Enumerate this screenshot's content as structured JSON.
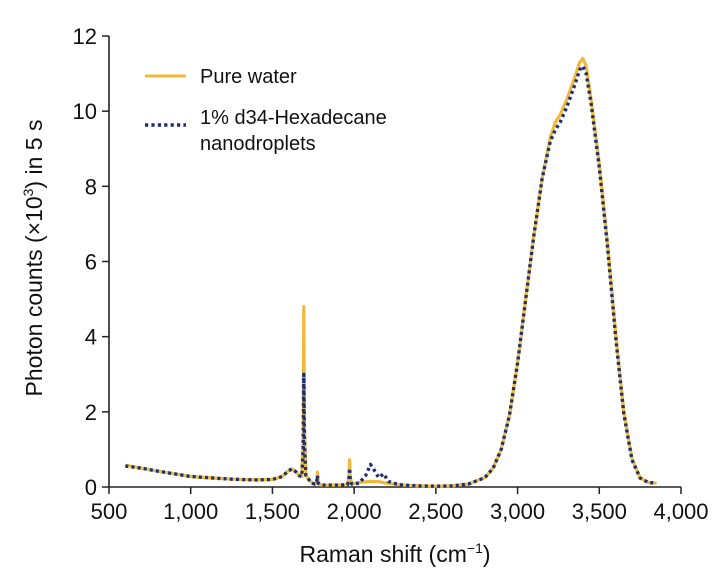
{
  "chart_data": {
    "type": "line",
    "xlabel": "Raman shift (cm",
    "xlabel_sup": "−1",
    "xlabel_tail": ")",
    "ylabel": "Photon counts (×10",
    "ylabel_sup": "3",
    "ylabel_tail": ") in 5 s",
    "xlim": [
      500,
      4000
    ],
    "ylim": [
      0,
      12
    ],
    "x_ticks": [
      500,
      1000,
      1500,
      2000,
      2500,
      3000,
      3500,
      4000
    ],
    "x_tick_labels": [
      "500",
      "1,000",
      "1,500",
      "2,000",
      "2,500",
      "3,000",
      "3,500",
      "4,000"
    ],
    "y_ticks": [
      0,
      2,
      4,
      6,
      8,
      10,
      12
    ],
    "y_tick_labels": [
      "0",
      "2",
      "4",
      "6",
      "8",
      "10",
      "12"
    ],
    "grid": false,
    "legend_position": "top-left",
    "series": [
      {
        "name": "Pure water",
        "color": "#f0b93b",
        "style": "solid",
        "points": [
          [
            600,
            0.58
          ],
          [
            700,
            0.5
          ],
          [
            800,
            0.42
          ],
          [
            900,
            0.35
          ],
          [
            1000,
            0.28
          ],
          [
            1100,
            0.25
          ],
          [
            1200,
            0.22
          ],
          [
            1300,
            0.2
          ],
          [
            1400,
            0.19
          ],
          [
            1500,
            0.2
          ],
          [
            1560,
            0.28
          ],
          [
            1600,
            0.44
          ],
          [
            1620,
            0.48
          ],
          [
            1645,
            0.4
          ],
          [
            1665,
            0.3
          ],
          [
            1680,
            0.28
          ],
          [
            1688,
            1.4
          ],
          [
            1692,
            4.8
          ],
          [
            1696,
            1.6
          ],
          [
            1705,
            0.3
          ],
          [
            1740,
            0.1
          ],
          [
            1760,
            0.08
          ],
          [
            1770,
            0.1
          ],
          [
            1775,
            0.4
          ],
          [
            1780,
            0.1
          ],
          [
            1800,
            0.05
          ],
          [
            1900,
            0.05
          ],
          [
            1960,
            0.06
          ],
          [
            1968,
            0.3
          ],
          [
            1972,
            0.72
          ],
          [
            1976,
            0.3
          ],
          [
            1985,
            0.08
          ],
          [
            2050,
            0.13
          ],
          [
            2100,
            0.15
          ],
          [
            2150,
            0.14
          ],
          [
            2200,
            0.1
          ],
          [
            2300,
            0.05
          ],
          [
            2400,
            0.03
          ],
          [
            2500,
            0.02
          ],
          [
            2600,
            0.03
          ],
          [
            2700,
            0.08
          ],
          [
            2800,
            0.25
          ],
          [
            2850,
            0.5
          ],
          [
            2900,
            1.0
          ],
          [
            2950,
            1.9
          ],
          [
            3000,
            3.3
          ],
          [
            3050,
            5.0
          ],
          [
            3100,
            6.7
          ],
          [
            3150,
            8.2
          ],
          [
            3200,
            9.3
          ],
          [
            3230,
            9.7
          ],
          [
            3260,
            9.9
          ],
          [
            3300,
            10.3
          ],
          [
            3350,
            10.9
          ],
          [
            3380,
            11.3
          ],
          [
            3400,
            11.4
          ],
          [
            3420,
            11.2
          ],
          [
            3450,
            10.3
          ],
          [
            3500,
            8.6
          ],
          [
            3550,
            6.5
          ],
          [
            3600,
            4.1
          ],
          [
            3650,
            2.0
          ],
          [
            3700,
            0.75
          ],
          [
            3750,
            0.25
          ],
          [
            3800,
            0.12
          ],
          [
            3850,
            0.1
          ]
        ]
      },
      {
        "name": "1% d34-Hexadecane nanodroplets",
        "color": "#1f2f6e",
        "style": "dotted",
        "points": [
          [
            600,
            0.56
          ],
          [
            700,
            0.5
          ],
          [
            800,
            0.42
          ],
          [
            900,
            0.35
          ],
          [
            1000,
            0.28
          ],
          [
            1100,
            0.25
          ],
          [
            1200,
            0.22
          ],
          [
            1300,
            0.2
          ],
          [
            1400,
            0.19
          ],
          [
            1500,
            0.2
          ],
          [
            1560,
            0.28
          ],
          [
            1600,
            0.44
          ],
          [
            1620,
            0.48
          ],
          [
            1645,
            0.4
          ],
          [
            1665,
            0.3
          ],
          [
            1680,
            0.28
          ],
          [
            1688,
            1.0
          ],
          [
            1692,
            3.0
          ],
          [
            1696,
            1.1
          ],
          [
            1705,
            0.3
          ],
          [
            1740,
            0.1
          ],
          [
            1760,
            0.08
          ],
          [
            1770,
            0.1
          ],
          [
            1775,
            0.3
          ],
          [
            1780,
            0.1
          ],
          [
            1800,
            0.05
          ],
          [
            1900,
            0.05
          ],
          [
            1960,
            0.06
          ],
          [
            1968,
            0.2
          ],
          [
            1972,
            0.5
          ],
          [
            1976,
            0.2
          ],
          [
            1985,
            0.08
          ],
          [
            2030,
            0.1
          ],
          [
            2070,
            0.3
          ],
          [
            2100,
            0.6
          ],
          [
            2130,
            0.4
          ],
          [
            2150,
            0.25
          ],
          [
            2180,
            0.35
          ],
          [
            2210,
            0.15
          ],
          [
            2260,
            0.08
          ],
          [
            2300,
            0.05
          ],
          [
            2400,
            0.03
          ],
          [
            2500,
            0.02
          ],
          [
            2600,
            0.03
          ],
          [
            2700,
            0.08
          ],
          [
            2800,
            0.25
          ],
          [
            2850,
            0.5
          ],
          [
            2900,
            1.0
          ],
          [
            2950,
            1.9
          ],
          [
            3000,
            3.3
          ],
          [
            3050,
            5.0
          ],
          [
            3100,
            6.7
          ],
          [
            3150,
            8.2
          ],
          [
            3200,
            9.2
          ],
          [
            3230,
            9.5
          ],
          [
            3260,
            9.7
          ],
          [
            3300,
            10.1
          ],
          [
            3350,
            10.7
          ],
          [
            3380,
            11.1
          ],
          [
            3400,
            11.2
          ],
          [
            3420,
            11.0
          ],
          [
            3450,
            10.2
          ],
          [
            3500,
            8.5
          ],
          [
            3550,
            6.4
          ],
          [
            3600,
            4.0
          ],
          [
            3650,
            1.95
          ],
          [
            3700,
            0.72
          ],
          [
            3750,
            0.24
          ],
          [
            3800,
            0.12
          ],
          [
            3850,
            0.1
          ]
        ]
      }
    ]
  }
}
